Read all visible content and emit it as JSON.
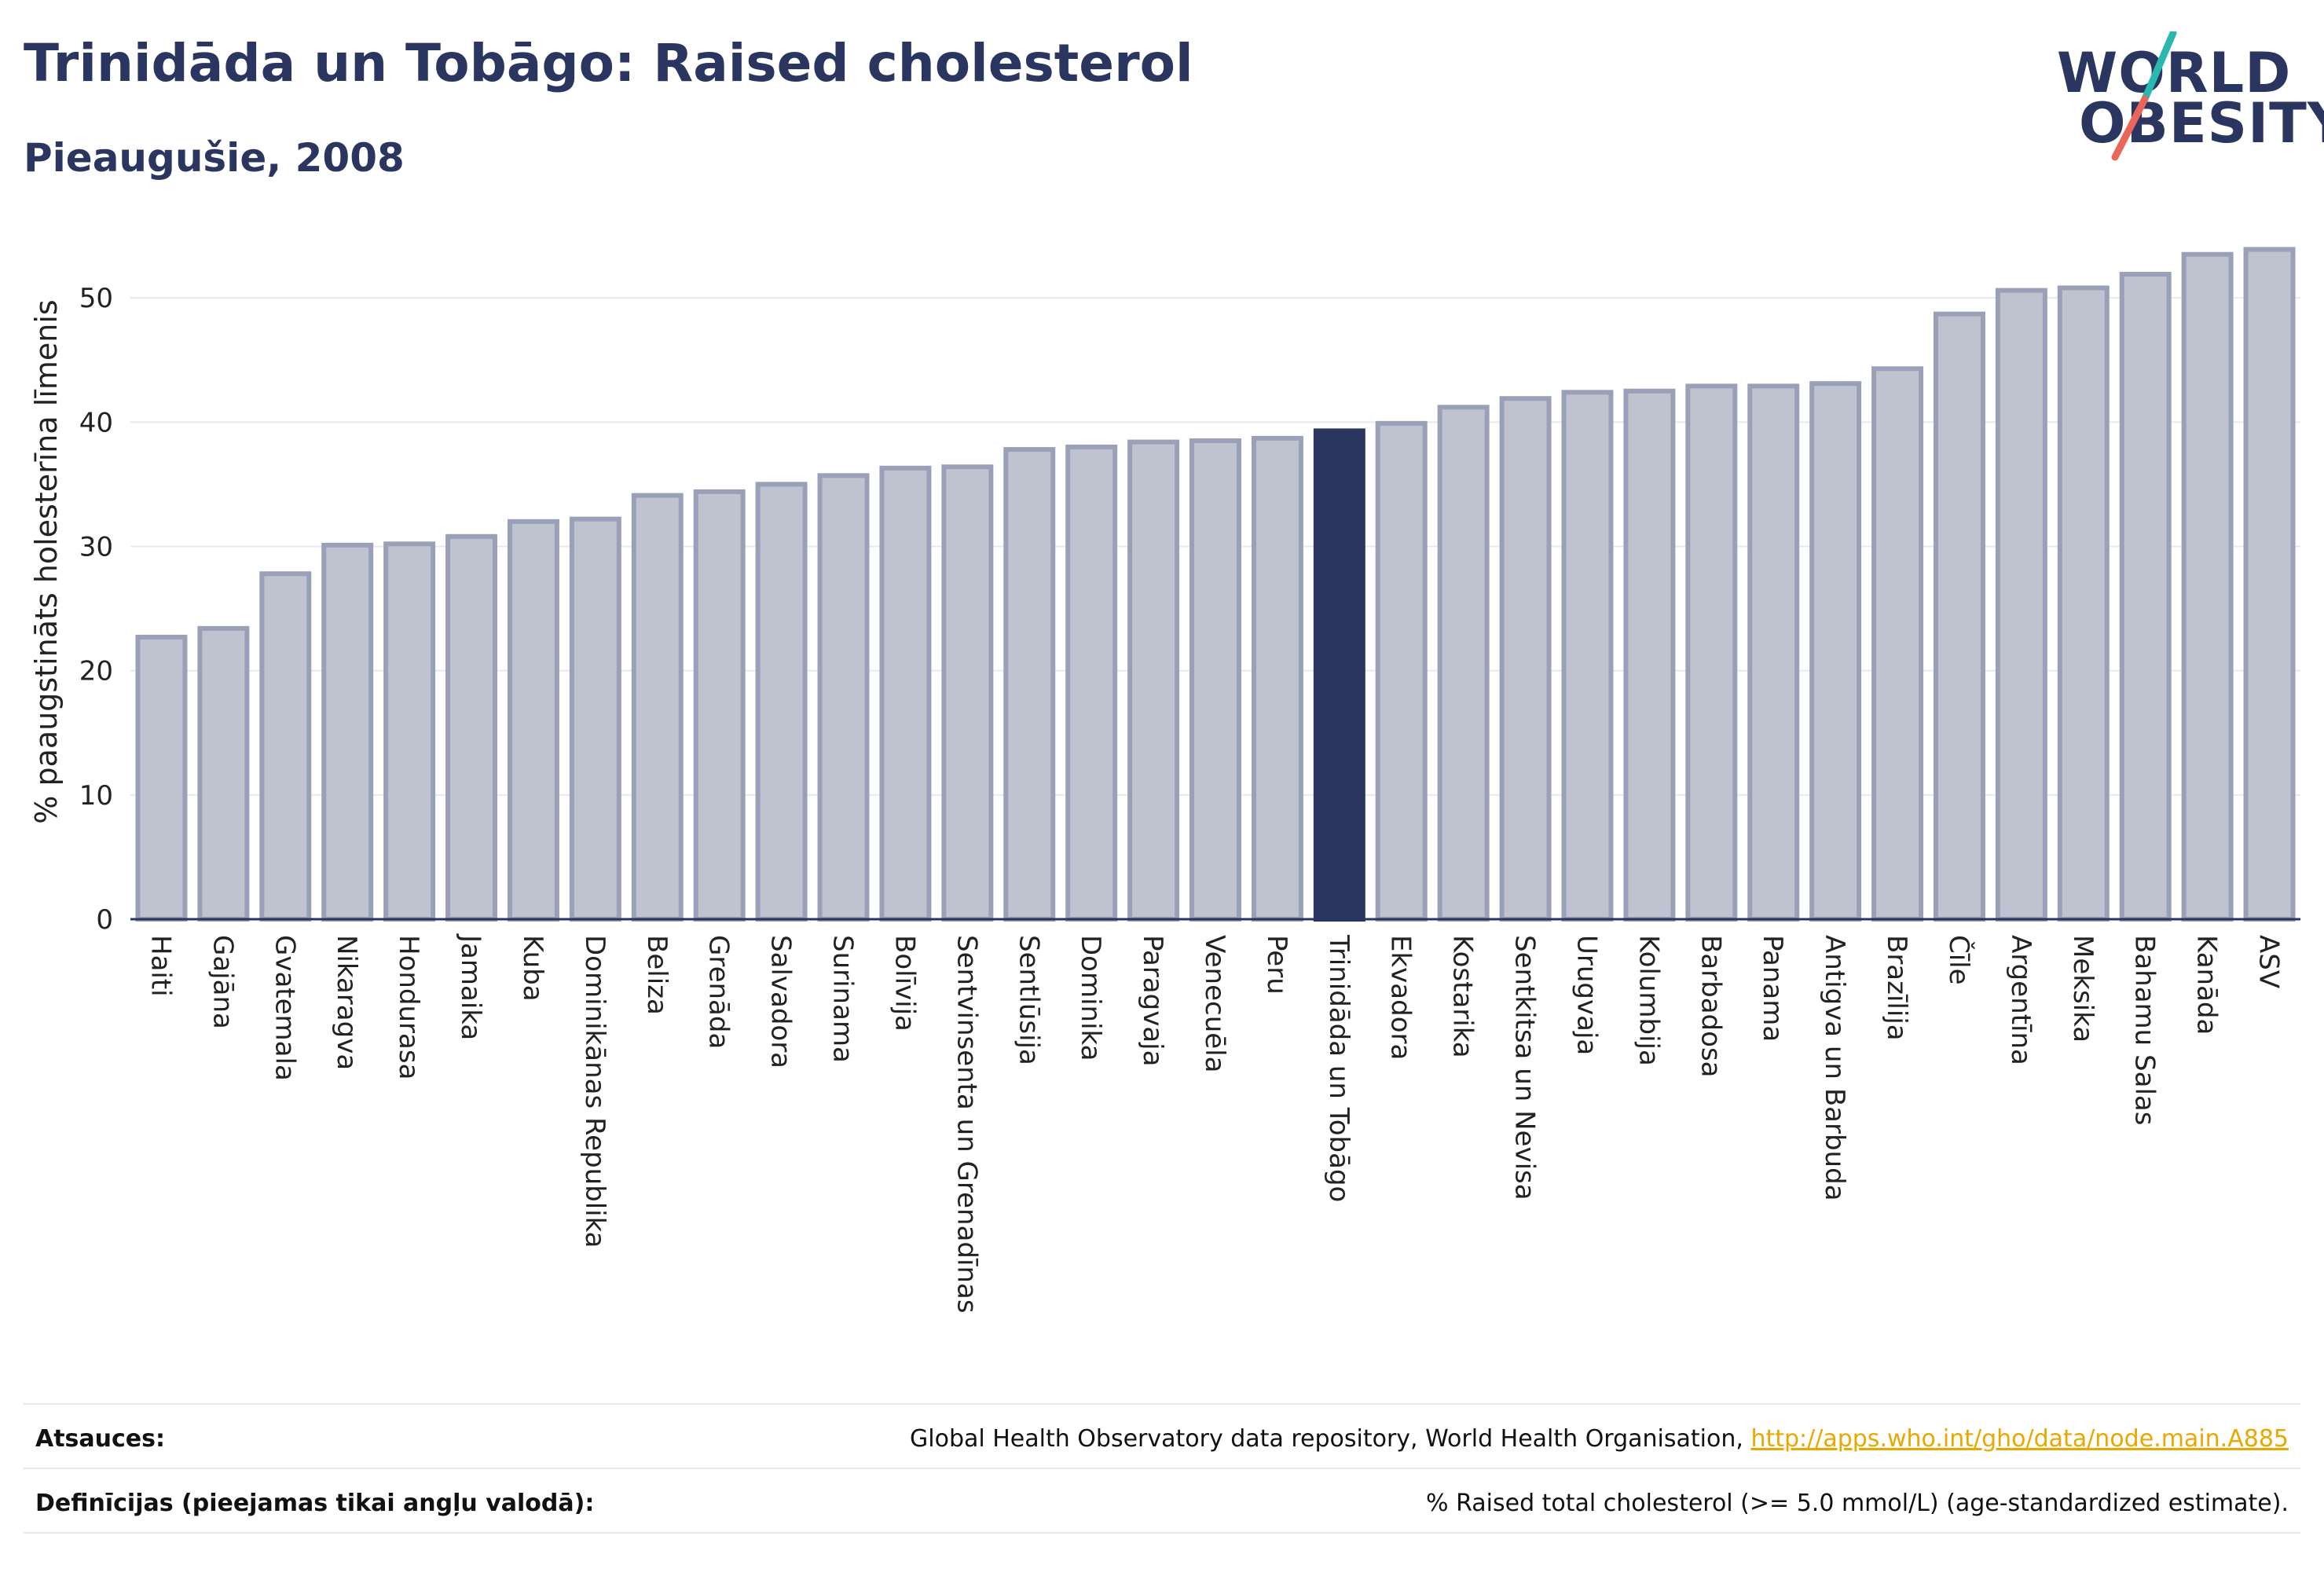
{
  "header": {
    "title": "Trinidāda un Tobāgo: Raised cholesterol",
    "subtitle": "Pieaugušie, 2008"
  },
  "logo": {
    "line1": "WORLD",
    "line2": "OBESITY",
    "colors": {
      "text": "#2a3560",
      "slash_top": "#2bb8b0",
      "slash_bottom": "#e8675a"
    }
  },
  "colors": {
    "bar": "#bfc3d0",
    "bar_stroke": "#9aa0b8",
    "highlight": "#2a3560",
    "grid": "#e8e9ef",
    "axis": "#2a3560"
  },
  "chart_data": {
    "type": "bar",
    "ylabel": "% paaugstināts holesterīna līmenis",
    "ylim": [
      0,
      55
    ],
    "yticks": [
      0,
      10,
      20,
      30,
      40,
      50
    ],
    "grid": true,
    "highlight": "Trinidāda un Tobāgo",
    "categories": [
      "Haiti",
      "Gajāna",
      "Gvatemala",
      "Nikaragva",
      "Hondurasa",
      "Jamaika",
      "Kuba",
      "Dominikānas Republika",
      "Beliza",
      "Grenāda",
      "Salvadora",
      "Surinama",
      "Bolīvija",
      "Sentvinsenta un Grenadīnas",
      "Sentlūsija",
      "Dominika",
      "Paragvaja",
      "Venecuēla",
      "Peru",
      "Trinidāda un Tobāgo",
      "Ekvadora",
      "Kostarika",
      "Sentkitsa un Nevisa",
      "Urugvaja",
      "Kolumbija",
      "Barbadosa",
      "Panama",
      "Antigva un Barbuda",
      "Brazīlija",
      "Čīle",
      "Argentīna",
      "Meksika",
      "Bahamu Salas",
      "Kanāda",
      "ASV"
    ],
    "values": [
      22.7,
      23.4,
      27.8,
      30.1,
      30.2,
      30.8,
      32.0,
      32.2,
      34.1,
      34.4,
      35.0,
      35.7,
      36.3,
      36.4,
      37.8,
      38.0,
      38.4,
      38.5,
      38.7,
      39.3,
      39.9,
      41.2,
      41.9,
      42.4,
      42.5,
      42.9,
      42.9,
      43.1,
      44.3,
      48.7,
      50.6,
      50.8,
      51.9,
      53.5,
      53.9
    ]
  },
  "footer": {
    "sources_label": "Atsauces:",
    "sources_text": "Global Health Observatory data repository, World Health Organisation, ",
    "sources_link": "http://apps.who.int/gho/data/node.main.A885",
    "definitions_label": "Definīcijas (pieejamas tikai angļu valodā):",
    "definitions_text": "% Raised total cholesterol (>= 5.0 mmol/L) (age-standardized estimate)."
  }
}
